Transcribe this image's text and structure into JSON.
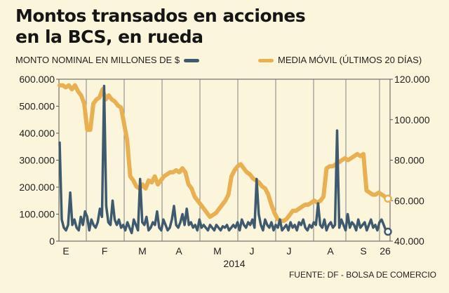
{
  "title": {
    "line1": "Montos transados en acciones",
    "line2": "en la BCS, en rueda"
  },
  "source": "FUENTE: DF - BOLSA DE COMERCIO",
  "colors": {
    "series1": "#3f5a6e",
    "series2": "#e8b050",
    "background": "#fbf5dc",
    "grid": "#7f7f7f"
  },
  "chart_data": {
    "type": "line",
    "title": "Montos transados en acciones en la BCS, en rueda",
    "xlabel": "2014",
    "x_ticks": [
      "E",
      "F",
      "M",
      "A",
      "M",
      "J",
      "J",
      "A",
      "S",
      "26"
    ],
    "left_axis": {
      "label": "MONTO NOMINAL EN MILLONES DE $",
      "ticks": [
        "0",
        "100.000",
        "200.000",
        "300.000",
        "400.000",
        "500.000",
        "600.000"
      ],
      "ylim": [
        0,
        600000
      ]
    },
    "right_axis": {
      "label": "MEDIA MÓVIL (ÚLTIMOS 20 DÍAS)",
      "ticks": [
        "40.000",
        "60.000",
        "80.000",
        "100.000",
        "120.000"
      ],
      "ylim": [
        40000,
        120000
      ]
    },
    "series": [
      {
        "name": "MONTO NOMINAL EN MILLONES DE $",
        "axis": "left",
        "values": [
          365000,
          80000,
          50000,
          40000,
          60000,
          180000,
          60000,
          80000,
          50000,
          40000,
          90000,
          60000,
          110000,
          90000,
          40000,
          80000,
          60000,
          50000,
          70000,
          120000,
          90000,
          575000,
          130000,
          70000,
          60000,
          150000,
          80000,
          60000,
          80000,
          50000,
          60000,
          40000,
          70000,
          50000,
          30000,
          80000,
          60000,
          40000,
          230000,
          70000,
          60000,
          90000,
          40000,
          50000,
          70000,
          60000,
          110000,
          50000,
          40000,
          80000,
          60000,
          40000,
          50000,
          80000,
          130000,
          60000,
          50000,
          70000,
          100000,
          60000,
          120000,
          60000,
          70000,
          50000,
          60000,
          40000,
          80000,
          50000,
          60000,
          50000,
          40000,
          60000,
          50000,
          40000,
          60000,
          50000,
          40000,
          55000,
          50000,
          60000,
          40000,
          50000,
          60000,
          50000,
          70000,
          40000,
          80000,
          60000,
          50000,
          70000,
          60000,
          80000,
          50000,
          230000,
          100000,
          60000,
          40000,
          80000,
          60000,
          50000,
          70000,
          40000,
          60000,
          50000,
          80000,
          40000,
          50000,
          60000,
          40000,
          70000,
          50000,
          60000,
          40000,
          70000,
          60000,
          80000,
          50000,
          40000,
          60000,
          50000,
          70000,
          60000,
          140000,
          60000,
          50000,
          80000,
          40000,
          60000,
          70000,
          50000,
          60000,
          410000,
          50000,
          80000,
          60000,
          40000,
          100000,
          50000,
          70000,
          60000,
          40000,
          80000,
          50000,
          60000,
          70000,
          40000,
          60000,
          80000,
          50000,
          60000,
          40000,
          70000,
          80000,
          60000,
          40000,
          35000
        ]
      },
      {
        "name": "MEDIA MÓVIL (ÚLTIMOS 20 DÍAS)",
        "axis": "right",
        "values": [
          117000,
          117000,
          116000,
          117000,
          115000,
          117000,
          114000,
          112000,
          108000,
          95000,
          95000,
          108000,
          110000,
          111000,
          115000,
          110000,
          112000,
          110000,
          109000,
          107000,
          106000,
          98000,
          90000,
          72000,
          70000,
          67000,
          66000,
          68000,
          66000,
          70000,
          69000,
          72000,
          68000,
          70000,
          72000,
          73000,
          74000,
          74000,
          75000,
          74000,
          76000,
          74000,
          68000,
          66000,
          62000,
          60000,
          58000,
          56000,
          54000,
          52000,
          53000,
          54000,
          56000,
          58000,
          60000,
          63000,
          72000,
          75000,
          77000,
          78000,
          76000,
          74000,
          73000,
          71000,
          70000,
          69000,
          67000,
          66000,
          63000,
          58000,
          54000,
          51000,
          50000,
          50000,
          51000,
          53000,
          55000,
          55000,
          56000,
          57000,
          58000,
          58000,
          59000,
          60000,
          59000,
          60000,
          62000,
          76000,
          77000,
          77000,
          78000,
          79000,
          80000,
          81000,
          80000,
          81000,
          82000,
          83000,
          82000,
          83000,
          65000,
          64000,
          63000,
          63000,
          64000,
          63000,
          62000,
          61000
        ]
      }
    ]
  }
}
